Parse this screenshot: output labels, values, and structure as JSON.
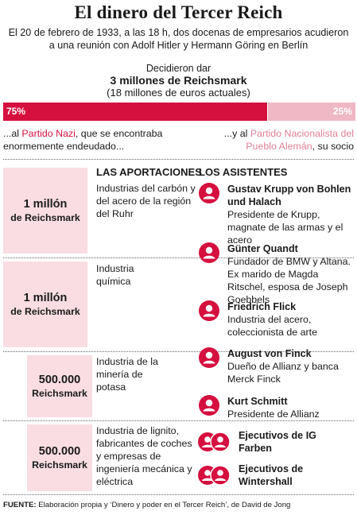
{
  "title": "El dinero del Tercer Reich",
  "subtitle": "El 20 de febrero de 1933, a las 18 h, dos docenas de empresarios acudieron a una reunión con Adolf Hitler y Hermann Göring en Berlín",
  "gave_label": "Decidieron dar",
  "gave_amount": "3 millones de Reichsmark",
  "gave_euros": "(18 millones de euros actuales)",
  "split": {
    "left_pct_label": "75%",
    "right_pct_label": "25%",
    "left_fraction": 0.75,
    "left_color": "#d5103f",
    "right_color": "#f0b8c4"
  },
  "note_left": {
    "prefix": "...al ",
    "party": "Partido Nazi",
    "suffix": ", que se encontraba enormemente endeudado..."
  },
  "note_right": {
    "prefix": "...y al ",
    "party": "Partido Nacionalista del Pueblo Alemán",
    "suffix": ", su socio"
  },
  "contributions_heading": "LAS APORTACIONES",
  "attendees_heading": "LOS ASISTENTES",
  "contributions": [
    {
      "amount": "1 millón",
      "unit": "de Reichsmark",
      "sector": "Industrias del carbón y del acero de la región del Ruhr"
    },
    {
      "amount": "1 millón",
      "unit": "de Reichsmark",
      "sector": "Industria química"
    },
    {
      "amount": "500.000",
      "unit": "Reichsmark",
      "sector": "Industria de la minería de potasa"
    },
    {
      "amount": "500.000",
      "unit": "Reichsmark",
      "sector": "Industria de lignito, fabricantes de coches y empresas de ingeniería mecánica y eléctrica"
    }
  ],
  "attendees": [
    {
      "name": "Gustav Krupp von Bohlen und Halach",
      "desc": "Presidente de Krupp, magnate de las armas y el acero",
      "icon": "person-icon"
    },
    {
      "name": "Günter Quandt",
      "desc": "Fundador de BMW y Altana. Ex marido de Magda Ritschel, esposa de Joseph Goebbels",
      "icon": "person-icon"
    },
    {
      "name": "Friedrich Flick",
      "desc": "Industria del acero, coleccionista de arte",
      "icon": "person-icon"
    },
    {
      "name": "August von Finck",
      "desc": "Dueño de Allianz y banca Merck Finck",
      "icon": "person-icon"
    },
    {
      "name": "Kurt Schmitt",
      "desc": "Presidente de Allianz",
      "icon": "person-icon"
    },
    {
      "name": "Ejecutivos de IG Farben",
      "desc": "",
      "icon": "group-icon"
    },
    {
      "name": "Ejecutivos de Wintershall",
      "desc": "",
      "icon": "group-icon"
    }
  ],
  "source": {
    "label": "FUENTE:",
    "text": "Elaboración propia y ‘Dinero y poder en el Tercer Reich’, de David de Jong"
  },
  "colors": {
    "accent": "#d5103f",
    "accent_light": "#f0b8c4",
    "box_fill": "#f9dde3"
  }
}
